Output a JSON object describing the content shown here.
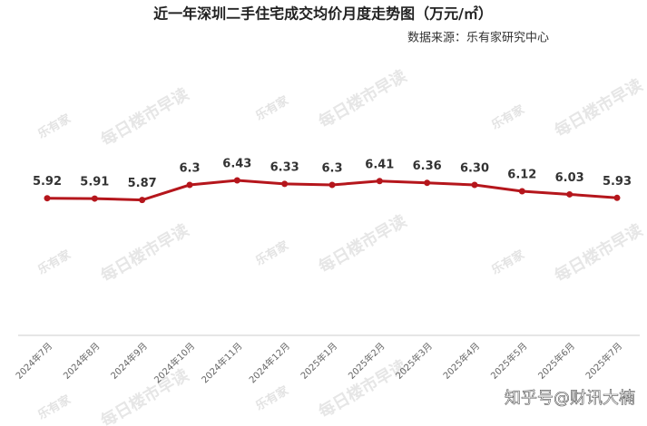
{
  "chart_data": {
    "type": "line",
    "title": "近一年深圳二手住宅成交均价月度走势图（万元/㎡）",
    "subtitle": "数据来源：乐有家研究中心",
    "categories": [
      "2024年7月",
      "2024年8月",
      "2024年9月",
      "2024年10月",
      "2024年11月",
      "2024年12月",
      "2025年1月",
      "2025年2月",
      "2025年3月",
      "2025年4月",
      "2025年5月",
      "2025年6月",
      "2025年7月"
    ],
    "series": [
      {
        "name": "成交均价",
        "color": "#b5161c",
        "values": [
          5.92,
          5.91,
          5.87,
          6.3,
          6.43,
          6.33,
          6.3,
          6.41,
          6.36,
          6.3,
          6.12,
          6.03,
          5.93
        ],
        "value_labels": [
          "5.92",
          "5.91",
          "5.87",
          "6.3",
          "6.43",
          "6.33",
          "6.3",
          "6.41",
          "6.36",
          "6.30",
          "6.12",
          "6.03",
          "5.93"
        ]
      }
    ],
    "ylim": [
      2,
      7
    ],
    "watermark": {
      "logo": "乐有家",
      "text": "每日楼市早读"
    },
    "footer_watermark": "知乎号@财讯大楠"
  }
}
